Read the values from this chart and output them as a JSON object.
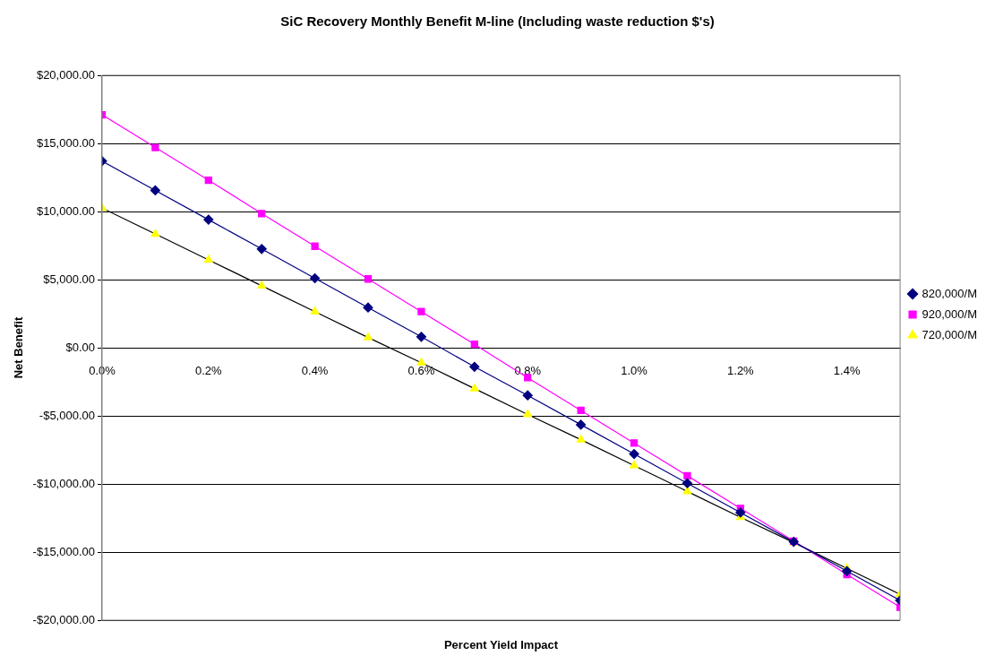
{
  "chart_data": {
    "type": "line",
    "title": "SiC Recovery Monthly Benefit M-line (Including waste reduction $'s)",
    "xlabel": "Percent Yield Impact",
    "ylabel": "Net Benefit",
    "x": [
      0,
      0.1,
      0.2,
      0.3,
      0.4,
      0.5,
      0.6,
      0.7,
      0.8,
      0.9,
      1.0,
      1.1,
      1.2,
      1.3,
      1.4,
      1.5
    ],
    "series": [
      {
        "name": "820,000/M",
        "color": "#000080",
        "marker": "diamond",
        "values": [
          13700,
          11550,
          9400,
          7250,
          5100,
          2950,
          800,
          -1400,
          -3500,
          -5650,
          -7800,
          -9950,
          -12100,
          -14250,
          -16400,
          -18550
        ]
      },
      {
        "name": "920,000/M",
        "color": "#ff00ff",
        "marker": "square",
        "values": [
          17100,
          14700,
          12300,
          9850,
          7450,
          5050,
          2650,
          250,
          -2200,
          -4600,
          -7000,
          -9400,
          -11800,
          -14200,
          -16650,
          -19050
        ]
      },
      {
        "name": "720,000/M",
        "color": "#ffff00",
        "marker": "triangle",
        "values": [
          10250,
          8350,
          6450,
          4550,
          2650,
          750,
          -1100,
          -3000,
          -4900,
          -6750,
          -8650,
          -10550,
          -12450,
          -14300,
          -16200,
          -18100
        ]
      }
    ],
    "xlim": [
      0,
      1.5
    ],
    "xticks": [
      {
        "value": 0,
        "label": "0.0%"
      },
      {
        "value": 0.2,
        "label": "0.2%"
      },
      {
        "value": 0.4,
        "label": "0.4%"
      },
      {
        "value": 0.6,
        "label": "0.6%"
      },
      {
        "value": 0.8,
        "label": "0.8%"
      },
      {
        "value": 1.0,
        "label": "1.0%"
      },
      {
        "value": 1.2,
        "label": "1.2%"
      },
      {
        "value": 1.4,
        "label": "1.4%"
      }
    ],
    "ylim": [
      -20000,
      20000
    ],
    "yticks": [
      {
        "value": -20000,
        "label": "-$20,000.00"
      },
      {
        "value": -15000,
        "label": "-$15,000.00"
      },
      {
        "value": -10000,
        "label": "-$10,000.00"
      },
      {
        "value": -5000,
        "label": "-$5,000.00"
      },
      {
        "value": 0,
        "label": "$0.00"
      },
      {
        "value": 5000,
        "label": "$5,000.00"
      },
      {
        "value": 10000,
        "label": "$10,000.00"
      },
      {
        "value": 15000,
        "label": "$15,000.00"
      },
      {
        "value": 20000,
        "label": "$20,000.00"
      }
    ],
    "grid": "y",
    "legend": "right",
    "line_style": "solid"
  }
}
